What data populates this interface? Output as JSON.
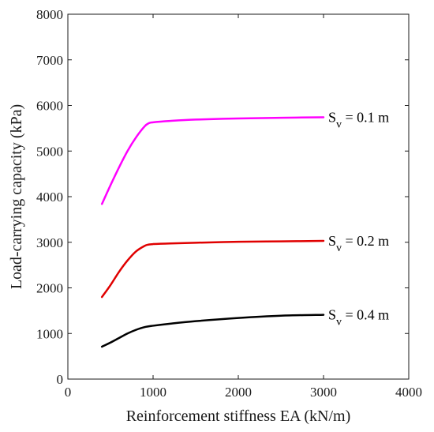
{
  "chart_data": {
    "type": "line",
    "xlabel": "Reinforcement stiffness EA (kN/m)",
    "ylabel": "Load-carrying capacity (kPa)",
    "xlim": [
      0,
      4000
    ],
    "ylim": [
      0,
      8000
    ],
    "xticks": [
      "0",
      "1000",
      "2000",
      "3000",
      "4000"
    ],
    "yticks": [
      "0",
      "1000",
      "2000",
      "3000",
      "4000",
      "5000",
      "6000",
      "7000",
      "8000"
    ],
    "grid": false,
    "series": [
      {
        "name": "S",
        "name_sub": "v",
        "name_suffix": " = 0.1 m",
        "color": "#ff00ff",
        "x": [
          400,
          500,
          600,
          700,
          800,
          900,
          950,
          1000,
          1200,
          1500,
          2000,
          2500,
          3000
        ],
        "y": [
          3840,
          4250,
          4640,
          5000,
          5300,
          5540,
          5610,
          5630,
          5660,
          5690,
          5715,
          5730,
          5740
        ]
      },
      {
        "name": "S",
        "name_sub": "v",
        "name_suffix": " = 0.2 m",
        "color": "#e00000",
        "x": [
          400,
          500,
          600,
          700,
          800,
          900,
          950,
          1000,
          1200,
          1500,
          2000,
          2500,
          3000
        ],
        "y": [
          1800,
          2060,
          2350,
          2600,
          2800,
          2920,
          2950,
          2960,
          2975,
          2990,
          3010,
          3020,
          3030
        ]
      },
      {
        "name": "S",
        "name_sub": "v",
        "name_suffix": " = 0.4 m",
        "color": "#000000",
        "x": [
          400,
          500,
          600,
          700,
          800,
          900,
          1000,
          1200,
          1500,
          2000,
          2500,
          3000
        ],
        "y": [
          710,
          800,
          900,
          1000,
          1080,
          1140,
          1170,
          1215,
          1270,
          1340,
          1390,
          1410
        ]
      }
    ]
  }
}
